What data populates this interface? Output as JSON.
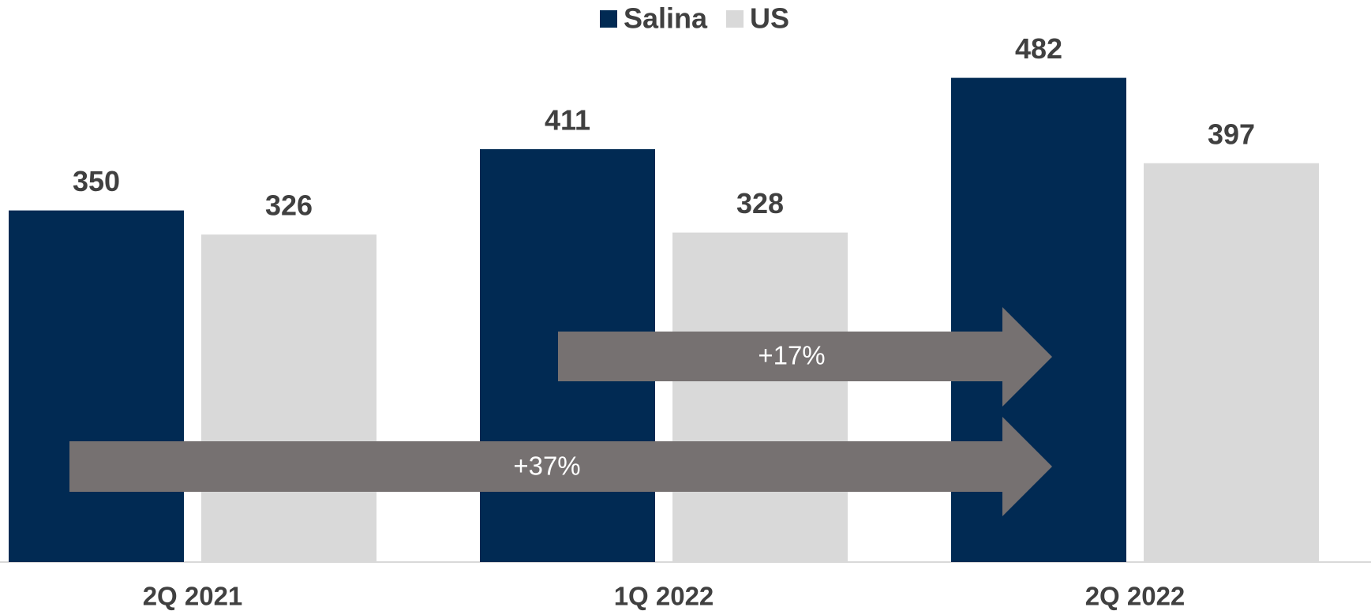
{
  "chart_data": {
    "type": "bar",
    "categories": [
      "2Q 2021",
      "1Q 2022",
      "2Q 2022"
    ],
    "series": [
      {
        "name": "Salina",
        "color": "#012a53",
        "values": [
          350,
          411,
          482
        ]
      },
      {
        "name": "US",
        "color": "#d9d9d9",
        "values": [
          326,
          328,
          397
        ]
      }
    ],
    "legend": "top",
    "annotations": [
      "+17%",
      "+37%"
    ]
  }
}
